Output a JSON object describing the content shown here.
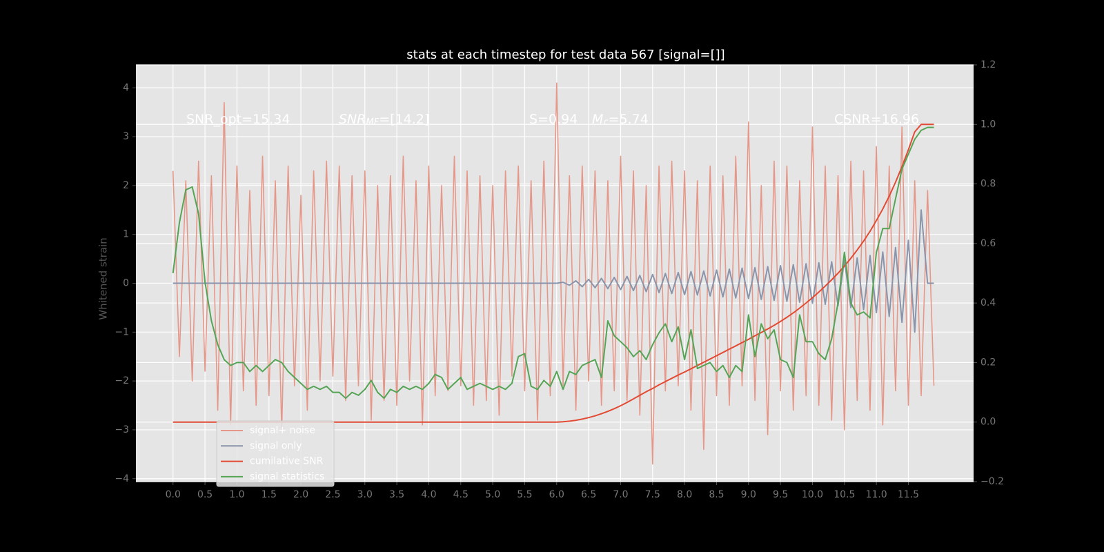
{
  "chart_data": {
    "type": "line",
    "title": "stats at each timestep for test data 567 [signal=[]]",
    "ylabel": "Whitened strain",
    "annotations": [
      [
        "SNR_opt=15.34"
      ],
      [
        "SNR",
        "MF",
        "=[14.2]"
      ],
      [
        "S=0.94"
      ],
      [
        "M",
        "c",
        "=5.74"
      ],
      [
        "CSNR=16.96"
      ]
    ],
    "xlim": [
      -0.58,
      12.52
    ],
    "ylim": [
      -4.06,
      4.47
    ],
    "y2lim": [
      -0.2,
      1.2
    ],
    "grid": true,
    "legend": "lower left",
    "xticks": [
      {
        "value": 0,
        "label": "0.0"
      },
      {
        "value": 0.5,
        "label": "0.5"
      },
      {
        "value": 1,
        "label": "1.0"
      },
      {
        "value": 1.5,
        "label": "1.5"
      },
      {
        "value": 2,
        "label": "2.0"
      },
      {
        "value": 2.5,
        "label": "2.5"
      },
      {
        "value": 3,
        "label": "3.0"
      },
      {
        "value": 3.5,
        "label": "3.5"
      },
      {
        "value": 4,
        "label": "4.0"
      },
      {
        "value": 4.5,
        "label": "4.5"
      },
      {
        "value": 5,
        "label": "5.0"
      },
      {
        "value": 5.5,
        "label": "5.5"
      },
      {
        "value": 6,
        "label": "6.0"
      },
      {
        "value": 6.5,
        "label": "6.5"
      },
      {
        "value": 7,
        "label": "7.0"
      },
      {
        "value": 7.5,
        "label": "7.5"
      },
      {
        "value": 8,
        "label": "8.0"
      },
      {
        "value": 8.5,
        "label": "8.5"
      },
      {
        "value": 9,
        "label": "9.0"
      },
      {
        "value": 9.5,
        "label": "9.5"
      },
      {
        "value": 10,
        "label": "10.0"
      },
      {
        "value": 10.5,
        "label": "10.5"
      },
      {
        "value": 11,
        "label": "11.0"
      },
      {
        "value": 11.5,
        "label": "11.5"
      }
    ],
    "yticks": [
      {
        "value": -4,
        "label": "−4"
      },
      {
        "value": -3,
        "label": "−3"
      },
      {
        "value": -2,
        "label": "−2"
      },
      {
        "value": -1,
        "label": "−1"
      },
      0,
      1,
      2,
      3,
      4
    ],
    "y2ticks": [
      {
        "value": -0.2,
        "label": "−0.2"
      },
      {
        "value": 0,
        "label": "0.0"
      },
      {
        "value": 0.2,
        "label": "0.2"
      },
      {
        "value": 0.4,
        "label": "0.4"
      },
      {
        "value": 0.6,
        "label": "0.6"
      },
      {
        "value": 0.8,
        "label": "0.8"
      },
      {
        "value": 1,
        "label": "1.0"
      },
      {
        "value": 1.2,
        "label": "1.2"
      }
    ],
    "x": [
      0,
      0.1,
      0.2,
      0.3,
      0.4,
      0.5,
      0.6,
      0.7,
      0.8,
      0.9,
      1,
      1.1,
      1.2,
      1.3,
      1.4,
      1.5,
      1.6,
      1.7,
      1.8,
      1.9,
      2,
      2.1,
      2.2,
      2.3,
      2.4,
      2.5,
      2.6,
      2.7,
      2.8,
      2.9,
      3,
      3.1,
      3.2,
      3.3,
      3.4,
      3.5,
      3.6,
      3.7,
      3.8,
      3.9,
      4,
      4.1,
      4.2,
      4.3,
      4.4,
      4.5,
      4.6,
      4.7,
      4.8,
      4.9,
      5,
      5.1,
      5.2,
      5.3,
      5.4,
      5.5,
      5.6,
      5.7,
      5.8,
      5.9,
      6,
      6.1,
      6.2,
      6.3,
      6.4,
      6.5,
      6.6,
      6.7,
      6.8,
      6.9,
      7,
      7.1,
      7.2,
      7.3,
      7.4,
      7.5,
      7.6,
      7.7,
      7.8,
      7.9,
      8,
      8.1,
      8.2,
      8.3,
      8.4,
      8.5,
      8.6,
      8.7,
      8.8,
      8.9,
      9,
      9.1,
      9.2,
      9.3,
      9.4,
      9.5,
      9.6,
      9.7,
      9.8,
      9.9,
      10,
      10.1,
      10.2,
      10.3,
      10.4,
      10.5,
      10.6,
      10.7,
      10.8,
      10.9,
      11,
      11.1,
      11.2,
      11.3,
      11.4,
      11.5,
      11.6,
      11.7,
      11.8,
      11.9
    ],
    "series": [
      {
        "name": "signal+ noise",
        "color": "#e5988a",
        "values": [
          2.3,
          -1.5,
          2.1,
          -2.0,
          2.5,
          -1.8,
          2.2,
          -2.6,
          3.7,
          -2.9,
          2.4,
          -2.2,
          1.9,
          -2.5,
          2.6,
          -2.3,
          2.1,
          -3.0,
          2.4,
          -2.1,
          1.8,
          -2.6,
          2.3,
          -2.0,
          2.5,
          -1.9,
          2.4,
          -2.4,
          2.2,
          -2.1,
          2.3,
          -2.8,
          2.0,
          -2.4,
          2.2,
          -2.5,
          2.6,
          -2.0,
          2.1,
          -2.9,
          2.4,
          -2.3,
          2.0,
          -2.2,
          2.6,
          -2.1,
          2.3,
          -2.5,
          2.2,
          -2.4,
          2.0,
          -2.7,
          2.3,
          -1.9,
          2.4,
          -2.2,
          2.1,
          -2.8,
          2.5,
          -2.3,
          4.1,
          -2.1,
          2.2,
          -2.6,
          2.4,
          -2.0,
          2.3,
          -2.5,
          2.1,
          -2.2,
          2.6,
          -2.4,
          2.3,
          -2.7,
          2.0,
          -3.7,
          2.4,
          -2.2,
          2.5,
          -2.1,
          2.3,
          -2.6,
          2.1,
          -3.4,
          2.4,
          -2.3,
          2.2,
          -2.5,
          2.6,
          -2.1,
          3.3,
          -2.4,
          2.0,
          -3.1,
          2.5,
          -2.2,
          2.4,
          -2.6,
          2.1,
          -2.3,
          3.2,
          -2.5,
          2.4,
          -2.8,
          2.2,
          -3.0,
          2.5,
          -2.4,
          2.3,
          -2.6,
          2.8,
          -2.9,
          2.4,
          -2.2,
          3.2,
          -2.5,
          2.1,
          -2.3,
          1.9,
          -2.1
        ]
      },
      {
        "name": "signal only",
        "color": "#8a94aa",
        "values": [
          0,
          0,
          0,
          0,
          0,
          0,
          0,
          0,
          0,
          0,
          0,
          0,
          0,
          0,
          0,
          0,
          0,
          0,
          0,
          0,
          0,
          0,
          0,
          0,
          0,
          0,
          0,
          0,
          0,
          0,
          0,
          0,
          0,
          0,
          0,
          0,
          0,
          0,
          0,
          0,
          0,
          0,
          0,
          0,
          0,
          0,
          0,
          0,
          0,
          0,
          0,
          0,
          0,
          0,
          0,
          0,
          0,
          0,
          0,
          0,
          0,
          0.02,
          -0.04,
          0.05,
          -0.07,
          0.08,
          -0.09,
          0.1,
          -0.11,
          0.12,
          -0.13,
          0.14,
          -0.15,
          0.16,
          -0.17,
          0.18,
          -0.19,
          0.2,
          -0.21,
          0.22,
          -0.23,
          0.24,
          -0.24,
          0.25,
          -0.26,
          0.27,
          -0.28,
          0.29,
          -0.3,
          0.31,
          -0.31,
          0.32,
          -0.33,
          0.34,
          -0.35,
          0.36,
          -0.37,
          0.38,
          -0.39,
          0.4,
          -0.41,
          0.42,
          -0.43,
          0.44,
          -0.46,
          0.48,
          -0.5,
          0.52,
          -0.54,
          0.57,
          -0.6,
          0.64,
          -0.68,
          0.73,
          -0.8,
          0.88,
          -1.0,
          1.5,
          0,
          0
        ]
      },
      {
        "name": "cumilative SNR",
        "color": "#e24a33",
        "axis": "y2",
        "values": [
          0,
          0,
          0,
          0,
          0,
          0,
          0,
          0,
          0,
          0,
          0,
          0,
          0,
          0,
          0,
          0,
          0,
          0,
          0,
          0,
          0,
          0,
          0,
          0,
          0,
          0,
          0,
          0,
          0,
          0,
          0,
          0,
          0,
          0,
          0,
          0,
          0,
          0,
          0,
          0,
          0,
          0,
          0,
          0,
          0,
          0,
          0,
          0,
          0,
          0,
          0,
          0,
          0,
          0,
          0,
          0,
          0,
          0,
          0,
          0,
          0,
          0.001,
          0.003,
          0.006,
          0.01,
          0.015,
          0.021,
          0.028,
          0.036,
          0.045,
          0.055,
          0.066,
          0.078,
          0.09,
          0.102,
          0.113,
          0.125,
          0.136,
          0.147,
          0.158,
          0.168,
          0.179,
          0.19,
          0.201,
          0.212,
          0.223,
          0.234,
          0.245,
          0.256,
          0.267,
          0.278,
          0.29,
          0.301,
          0.313,
          0.325,
          0.338,
          0.352,
          0.367,
          0.383,
          0.4,
          0.418,
          0.437,
          0.457,
          0.478,
          0.5,
          0.524,
          0.55,
          0.578,
          0.608,
          0.641,
          0.677,
          0.716,
          0.759,
          0.806,
          0.858,
          0.915,
          0.975,
          1.0,
          1.0,
          1.0
        ]
      },
      {
        "name": "signal statistics",
        "color": "#55a455",
        "axis": "y2",
        "values": [
          0.5,
          0.67,
          0.78,
          0.79,
          0.7,
          0.47,
          0.34,
          0.26,
          0.21,
          0.19,
          0.2,
          0.2,
          0.17,
          0.19,
          0.17,
          0.19,
          0.21,
          0.2,
          0.17,
          0.15,
          0.13,
          0.11,
          0.12,
          0.11,
          0.12,
          0.1,
          0.1,
          0.08,
          0.1,
          0.09,
          0.11,
          0.14,
          0.1,
          0.08,
          0.11,
          0.1,
          0.12,
          0.11,
          0.12,
          0.11,
          0.13,
          0.16,
          0.15,
          0.11,
          0.13,
          0.15,
          0.11,
          0.12,
          0.13,
          0.12,
          0.11,
          0.12,
          0.11,
          0.13,
          0.22,
          0.23,
          0.12,
          0.11,
          0.14,
          0.12,
          0.17,
          0.11,
          0.17,
          0.16,
          0.19,
          0.2,
          0.21,
          0.15,
          0.34,
          0.29,
          0.27,
          0.25,
          0.22,
          0.24,
          0.21,
          0.26,
          0.3,
          0.33,
          0.27,
          0.32,
          0.21,
          0.31,
          0.18,
          0.19,
          0.2,
          0.17,
          0.19,
          0.15,
          0.19,
          0.17,
          0.36,
          0.22,
          0.33,
          0.28,
          0.31,
          0.21,
          0.2,
          0.15,
          0.36,
          0.27,
          0.27,
          0.23,
          0.21,
          0.28,
          0.4,
          0.57,
          0.4,
          0.36,
          0.37,
          0.35,
          0.57,
          0.65,
          0.65,
          0.75,
          0.85,
          0.9,
          0.95,
          0.98,
          0.99,
          0.99
        ]
      }
    ]
  }
}
